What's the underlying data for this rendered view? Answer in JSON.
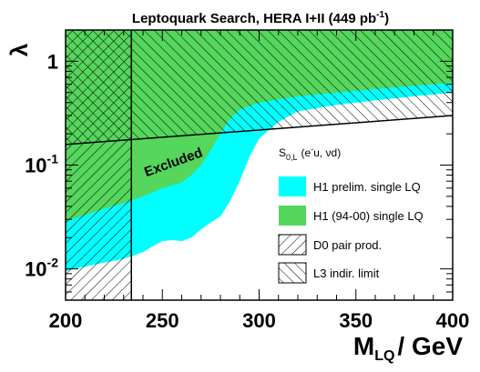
{
  "chart_data": {
    "type": "area",
    "title": {
      "main": "Leptoquark Search, HERA I+II (449 pb",
      "sup": "-1",
      "tail": ")"
    },
    "xlabel": {
      "main": "M",
      "sub": "LQ",
      "tail": "/ GeV"
    },
    "ylabel": "λ",
    "xlim": [
      200,
      400
    ],
    "ylim": [
      0.005,
      2.0
    ],
    "yscale": "log",
    "x_ticks": [
      200,
      250,
      300,
      350,
      400
    ],
    "x_tick_labels": [
      "200",
      "250",
      "300",
      "350",
      "400"
    ],
    "y_ticks": [
      0.01,
      0.1,
      1
    ],
    "y_tick_labels": [
      {
        "base": "10",
        "exp": "-2"
      },
      {
        "base": "10",
        "exp": "-1"
      },
      {
        "base": "1",
        "exp": ""
      }
    ],
    "annotation": "Excluded",
    "legend": {
      "placement": "right",
      "header": {
        "main": "S",
        "sub": "0,L",
        "paren": "(e",
        "sup": "-",
        "rest": "u, νd)"
      },
      "entries": [
        {
          "key": "h1_prelim",
          "label": "H1 prelim. single LQ",
          "style": "fill",
          "color": "#00ffff"
        },
        {
          "key": "h1_9400",
          "label": "H1 (94-00) single LQ",
          "style": "fill",
          "color": "#55d65c"
        },
        {
          "key": "d0",
          "label": "D0 pair prod.",
          "style": "hatch-backslash"
        },
        {
          "key": "l3",
          "label": "L3 indir. limit",
          "style": "hatch-slash"
        }
      ]
    },
    "series": [
      {
        "key": "h1_prelim",
        "name": "H1 prelim. single LQ",
        "color": "#00ffff",
        "x": [
          200,
          210,
          220,
          230,
          240,
          245,
          250,
          255,
          260,
          265,
          270,
          275,
          280,
          285,
          290,
          295,
          300,
          310,
          320,
          340,
          360,
          380,
          400
        ],
        "y": [
          0.0095,
          0.0105,
          0.0115,
          0.0125,
          0.0145,
          0.0165,
          0.0185,
          0.019,
          0.0185,
          0.02,
          0.024,
          0.028,
          0.032,
          0.045,
          0.07,
          0.12,
          0.18,
          0.26,
          0.33,
          0.38,
          0.42,
          0.46,
          0.5
        ]
      },
      {
        "key": "h1_9400",
        "name": "H1 (94-00) single LQ",
        "color": "#55d65c",
        "x": [
          200,
          210,
          220,
          230,
          240,
          250,
          260,
          265,
          270,
          275,
          280,
          285,
          290,
          300,
          310,
          320,
          340,
          360,
          380,
          400
        ],
        "y": [
          0.029,
          0.033,
          0.038,
          0.043,
          0.05,
          0.06,
          0.068,
          0.08,
          0.1,
          0.14,
          0.2,
          0.28,
          0.34,
          0.4,
          0.43,
          0.46,
          0.5,
          0.54,
          0.58,
          0.62
        ]
      },
      {
        "key": "d0",
        "name": "D0 pair prod.",
        "x": [
          234,
          234
        ],
        "y": [
          0.005,
          2.0
        ],
        "region": "below-mass"
      },
      {
        "key": "l3",
        "name": "L3 indir. limit",
        "x": [
          200,
          400
        ],
        "y": [
          0.158,
          0.3
        ],
        "region": "above-line"
      }
    ]
  }
}
